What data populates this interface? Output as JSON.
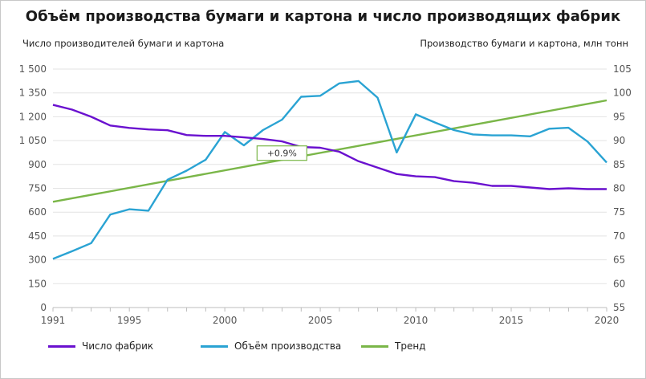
{
  "chart_data": {
    "type": "line",
    "title": "Объём производства бумаги и картона и число производящих фабрик",
    "ylabel_left": "Число производителей бумаги и картона",
    "ylabel_right": "Производство бумаги и картона, млн тонн",
    "x": [
      1991,
      1992,
      1993,
      1994,
      1995,
      1996,
      1997,
      1998,
      1999,
      2000,
      2001,
      2002,
      2003,
      2004,
      2005,
      2006,
      2007,
      2008,
      2009,
      2010,
      2011,
      2012,
      2013,
      2014,
      2015,
      2016,
      2017,
      2018,
      2019,
      2020
    ],
    "x_ticks": [
      "1991",
      "1995",
      "2000",
      "2005",
      "2010",
      "2015",
      "2020"
    ],
    "y_left_ticks": [
      "0",
      "150",
      "300",
      "450",
      "600",
      "750",
      "900",
      "1 050",
      "1 200",
      "1 350",
      "1 500"
    ],
    "y_right_ticks": [
      "55",
      "60",
      "65",
      "70",
      "75",
      "80",
      "85",
      "90",
      "95",
      "100",
      "105"
    ],
    "ylim_left": [
      0,
      1500
    ],
    "ylim_right": [
      55,
      105
    ],
    "grid": "horizontal",
    "legend_position": "bottom",
    "series": [
      {
        "name": "Число фабрик",
        "axis": "left",
        "color": "#6a11cf",
        "values": [
          1275,
          1245,
          1200,
          1145,
          1130,
          1120,
          1115,
          1085,
          1080,
          1080,
          1070,
          1060,
          1045,
          1010,
          1005,
          980,
          920,
          880,
          840,
          825,
          820,
          795,
          785,
          765,
          765,
          755,
          745,
          750,
          745,
          745
        ]
      },
      {
        "name": "Объём производства",
        "axis": "right",
        "color": "#2aa3d3",
        "values": [
          65.2,
          66.8,
          68.5,
          74.5,
          75.6,
          75.3,
          81.8,
          83.7,
          86.0,
          91.8,
          89.0,
          92.2,
          94.4,
          99.2,
          99.4,
          102.0,
          102.5,
          99.0,
          87.5,
          95.5,
          93.8,
          92.2,
          91.3,
          91.1,
          91.1,
          90.9,
          92.5,
          92.7,
          89.8,
          85.4
        ]
      },
      {
        "name": "Тренд",
        "axis": "left",
        "color": "#7ab648",
        "values": [
          665,
          687,
          709,
          731,
          753,
          775,
          797,
          819,
          841,
          863,
          885,
          907,
          929,
          951,
          973,
          995,
          1017,
          1039,
          1061,
          1083,
          1105,
          1127,
          1149,
          1171,
          1193,
          1215,
          1237,
          1259,
          1281,
          1303
        ]
      }
    ],
    "annotations": [
      {
        "text": "+0.9%",
        "series": "Тренд",
        "x": 2004
      }
    ]
  }
}
